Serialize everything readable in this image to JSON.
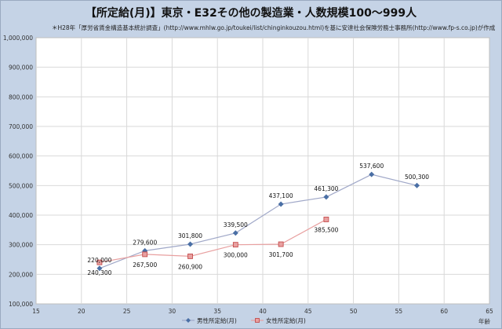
{
  "title": "【所定給(月)】東京・E32その他の製造業・人数規模100～999人",
  "note": "＊H28年「厚労省賃金構造基本統計調査」(http://www.mhlw.go.jp/toukei/list/chinginkouzou.html)を基に安達社会保険労務士事務所(http://www.fp-s.co.jp)が作成",
  "chart_data": {
    "type": "line",
    "xlabel": "年齢",
    "ylabel": "",
    "xlim": [
      15,
      65
    ],
    "ylim": [
      100000,
      1000000
    ],
    "xticks": [
      15,
      20,
      25,
      30,
      35,
      40,
      45,
      50,
      55,
      60,
      65
    ],
    "yticks": [
      100000,
      200000,
      300000,
      400000,
      500000,
      600000,
      700000,
      800000,
      900000,
      1000000
    ],
    "ytick_labels": [
      "100,000",
      "200,000",
      "300,000",
      "400,000",
      "500,000",
      "600,000",
      "700,000",
      "800,000",
      "900,000",
      "1,000,000"
    ],
    "grid": true,
    "legend": "bottom",
    "series": [
      {
        "name": "男性所定給(月)",
        "color": "#4a6fa5",
        "line_color": "#a0a8c8",
        "marker": "diamond",
        "x": [
          22,
          27,
          32,
          37,
          42,
          47,
          52,
          57
        ],
        "values": [
          220000,
          279600,
          301800,
          339500,
          437100,
          461300,
          537600,
          500300
        ],
        "labels": [
          "220,000",
          "279,600",
          "301,800",
          "339,500",
          "437,100",
          "461,300",
          "537,600",
          "500,300"
        ]
      },
      {
        "name": "女性所定給(月)",
        "color": "#e8a0a0",
        "line_color": "#e8a0a0",
        "marker": "square",
        "x": [
          22,
          27,
          32,
          37,
          42,
          47
        ],
        "values": [
          240300,
          267500,
          260900,
          300000,
          301700,
          385500
        ],
        "labels": [
          "240,300",
          "267,500",
          "260,900",
          "300,000",
          "301,700",
          "385,500"
        ]
      }
    ]
  }
}
